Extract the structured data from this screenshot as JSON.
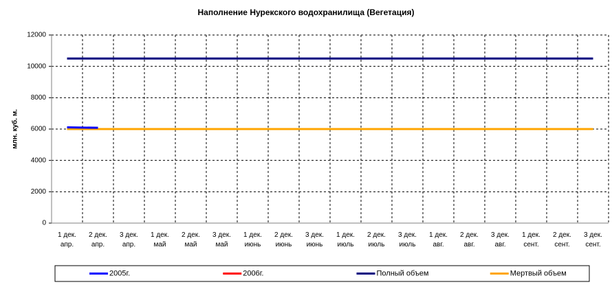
{
  "chart_data": {
    "type": "line",
    "title": "Наполнение Нурекского водохранилища (Вегетация)",
    "y_label": "млн. куб. м.",
    "categories": [
      "1 дек.\nапр.",
      "2 дек.\nапр.",
      "3 дек.\nапр.",
      "1 дек.\nмай",
      "2 дек.\nмай",
      "3 дек.\nмай",
      "1 дек.\nиюнь",
      "2 дек.\nиюнь",
      "3 дек.\nиюнь",
      "1 дек.\nиюль",
      "2 дек.\nиюль",
      "3 дек.\nиюль",
      "1 дек.\nавг.",
      "2 дек.\nавг.",
      "3 дек.\nавг.",
      "1 дек.\nсент.",
      "2 дек.\nсент.",
      "3 дек.\nсент."
    ],
    "series": [
      {
        "name": "2005г.",
        "color": "#0000ff",
        "values": [
          6110,
          6080,
          null,
          null,
          null,
          null,
          null,
          null,
          null,
          null,
          null,
          null,
          null,
          null,
          null,
          null,
          null,
          null
        ]
      },
      {
        "name": "2006г.",
        "color": "#ff0000",
        "values": [
          null,
          null,
          null,
          null,
          null,
          null,
          null,
          null,
          null,
          null,
          null,
          null,
          null,
          null,
          null,
          null,
          null,
          null
        ]
      },
      {
        "name": "Полный объем",
        "color": "#000080",
        "values": [
          10500,
          10500,
          10500,
          10500,
          10500,
          10500,
          10500,
          10500,
          10500,
          10500,
          10500,
          10500,
          10500,
          10500,
          10500,
          10500,
          10500,
          10500
        ]
      },
      {
        "name": "Мертвый объем",
        "color": "#ffa500",
        "values": [
          6000,
          6000,
          6000,
          6000,
          6000,
          6000,
          6000,
          6000,
          6000,
          6000,
          6000,
          6000,
          6000,
          6000,
          6000,
          6000,
          6000,
          6000
        ]
      }
    ],
    "ylim": [
      0,
      12000
    ],
    "yticks": [
      0,
      2000,
      4000,
      6000,
      8000,
      10000,
      12000
    ],
    "grid": true,
    "legend": "bottom"
  }
}
